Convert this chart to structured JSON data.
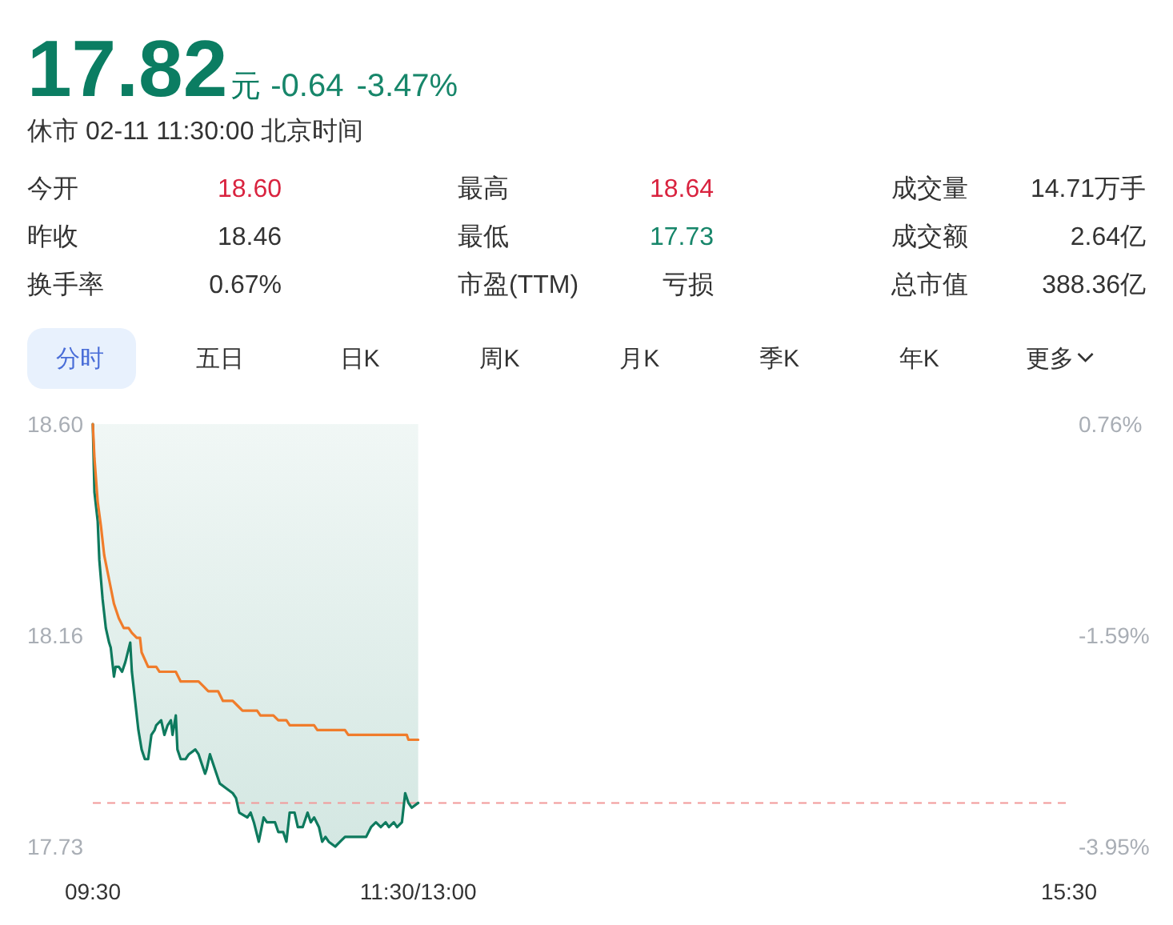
{
  "chart_data": [
    {
      "type": "other",
      "title": "17.82",
      "color": "#0b7d62",
      "subtitle": "休市 02-11 11:30:00 北京时间",
      "annotations": [
        "元",
        "-0.64",
        "-3.47%",
        "今开",
        "18.60",
        "最高",
        "18.64",
        "成交量",
        "14.71万手",
        "昨收",
        "18.46",
        "最低",
        "17.73",
        "成交额",
        "2.64亿",
        "换手率",
        "0.67%",
        "市盈(TTM)",
        "亏损",
        "总市值",
        "388.36亿",
        "分时",
        "五日",
        "日K",
        "周K",
        "月K",
        "季K",
        "年K",
        "更多"
      ],
      "colors": [
        "#0b7d62",
        "#17866a",
        "#17866a",
        "#333333",
        "#d9233f",
        "#333333",
        "#d9233f",
        "#333333",
        "#333333",
        "#333333",
        "#333333",
        "#333333",
        "#17866a",
        "#333333",
        "#333333",
        "#333333",
        "#333333",
        "#333333",
        "#333333",
        "#333333",
        "#333333",
        "#4a6ed8",
        "#333333",
        "#333333",
        "#333333",
        "#333333",
        "#333333",
        "#333333",
        "#333333"
      ]
    },
    {
      "type": "line",
      "xlim": [
        9.5,
        15.5
      ],
      "xticks": [
        {
          "value": 9.5,
          "label": "09:30"
        },
        {
          "value": 11.5,
          "label": "11:30/13:00"
        },
        {
          "value": 15.5,
          "label": "15:30"
        }
      ],
      "ylim": [
        17.73,
        18.6
      ],
      "yticks": [
        {
          "value": 18.6,
          "label": "18.60"
        },
        {
          "value": 18.165,
          "label": "18.16"
        },
        17.73
      ],
      "y2lim": [
        -3.95,
        0.76
      ],
      "y2ticks": [
        {
          "value": 0.76,
          "label": "0.76%"
        },
        {
          "value": -1.595,
          "label": "-1.59%"
        },
        {
          "value": -3.95,
          "label": "-3.95%"
        }
      ],
      "ref_lines": [
        {
          "axis": "y",
          "value": 17.82,
          "color": "#f29a9a",
          "line_style": "dashed"
        }
      ],
      "series": [
        {
          "type": "line",
          "color": "#0e7a5e",
          "x": [
            9.5,
            9.51,
            9.53,
            9.54,
            9.56,
            9.58,
            9.6,
            9.61,
            9.63,
            9.64,
            9.66,
            9.68,
            9.7,
            9.73,
            9.74,
            9.76,
            9.78,
            9.8,
            9.82,
            9.84,
            9.86,
            9.88,
            9.89,
            9.92,
            9.94,
            9.96,
            9.98,
            9.99,
            10.01,
            10.02,
            10.04,
            10.07,
            10.09,
            10.13,
            10.15,
            10.19,
            10.2,
            10.22,
            10.26,
            10.28,
            10.32,
            10.36,
            10.38,
            10.4,
            10.45,
            10.47,
            10.49,
            10.52,
            10.55,
            10.57,
            10.62,
            10.64,
            10.67,
            10.69,
            10.71,
            10.74,
            10.76,
            10.79,
            10.82,
            10.84,
            10.86,
            10.89,
            10.91,
            10.93,
            10.95,
            10.99,
            11.02,
            11.05,
            11.18,
            11.21,
            11.24,
            11.27,
            11.3,
            11.32,
            11.35,
            11.37,
            11.4,
            11.42,
            11.44,
            11.46,
            11.5
          ],
          "values": [
            18.6,
            18.46,
            18.4,
            18.32,
            18.24,
            18.18,
            18.15,
            18.14,
            18.08,
            18.1,
            18.1,
            18.09,
            18.11,
            18.15,
            18.09,
            18.03,
            17.97,
            17.93,
            17.91,
            17.91,
            17.96,
            17.97,
            17.98,
            17.99,
            17.96,
            17.98,
            17.99,
            17.96,
            18.0,
            17.93,
            17.91,
            17.91,
            17.92,
            17.93,
            17.92,
            17.88,
            17.89,
            17.92,
            17.88,
            17.86,
            17.85,
            17.84,
            17.83,
            17.8,
            17.79,
            17.8,
            17.78,
            17.74,
            17.79,
            17.78,
            17.78,
            17.76,
            17.76,
            17.74,
            17.8,
            17.8,
            17.77,
            17.77,
            17.8,
            17.78,
            17.79,
            17.77,
            17.74,
            17.75,
            17.74,
            17.73,
            17.74,
            17.75,
            17.75,
            17.77,
            17.78,
            17.77,
            17.78,
            17.77,
            17.78,
            17.77,
            17.78,
            17.84,
            17.82,
            17.81,
            17.82
          ],
          "lower": [
            18.6,
            18.46,
            18.4,
            18.32,
            18.24,
            18.18,
            18.15,
            18.14,
            18.08,
            18.1,
            18.1,
            18.09,
            18.11,
            18.15,
            18.09,
            18.03,
            17.97,
            17.93,
            17.91,
            17.91,
            17.96,
            17.97,
            17.98,
            17.99,
            17.96,
            17.98,
            17.99,
            17.96,
            18.0,
            17.93,
            17.91,
            17.91,
            17.92,
            17.93,
            17.92,
            17.88,
            17.89,
            17.92,
            17.88,
            17.86,
            17.85,
            17.84,
            17.83,
            17.8,
            17.79,
            17.8,
            17.78,
            17.74,
            17.79,
            17.78,
            17.78,
            17.76,
            17.76,
            17.74,
            17.8,
            17.8,
            17.77,
            17.77,
            17.8,
            17.78,
            17.79,
            17.77,
            17.74,
            17.75,
            17.74,
            17.73,
            17.74,
            17.75,
            17.75,
            17.77,
            17.78,
            17.77,
            17.78,
            17.77,
            17.78,
            17.77,
            17.78,
            17.84,
            17.82,
            17.81,
            17.82
          ],
          "upper": [
            18.6,
            18.6,
            18.6,
            18.6,
            18.6,
            18.6,
            18.6,
            18.6,
            18.6,
            18.6,
            18.6,
            18.6,
            18.6,
            18.6,
            18.6,
            18.6,
            18.6,
            18.6,
            18.6,
            18.6,
            18.6,
            18.6,
            18.6,
            18.6,
            18.6,
            18.6,
            18.6,
            18.6,
            18.6,
            18.6,
            18.6,
            18.6,
            18.6,
            18.6,
            18.6,
            18.6,
            18.6,
            18.6,
            18.6,
            18.6,
            18.6,
            18.6,
            18.6,
            18.6,
            18.6,
            18.6,
            18.6,
            18.6,
            18.6,
            18.6,
            18.6,
            18.6,
            18.6,
            18.6,
            18.6,
            18.6,
            18.6,
            18.6,
            18.6,
            18.6,
            18.6,
            18.6,
            18.6,
            18.6,
            18.6,
            18.6,
            18.6,
            18.6,
            18.6,
            18.6,
            18.6,
            18.6,
            18.6,
            18.6,
            18.6,
            18.6,
            18.6,
            18.6,
            18.6,
            18.6,
            18.6
          ]
        },
        {
          "type": "line",
          "color": "#f07c2b",
          "x": [
            9.5,
            9.51,
            9.53,
            9.55,
            9.57,
            9.6,
            9.63,
            9.66,
            9.69,
            9.72,
            9.74,
            9.77,
            9.79,
            9.8,
            9.84,
            9.89,
            9.91,
            10.01,
            10.04,
            10.15,
            10.18,
            10.21,
            10.27,
            10.3,
            10.36,
            10.39,
            10.42,
            10.51,
            10.53,
            10.61,
            10.64,
            10.69,
            10.71,
            10.86,
            10.88,
            11.05,
            11.07,
            11.43,
            11.44,
            11.5
          ],
          "values": [
            18.6,
            18.53,
            18.44,
            18.39,
            18.33,
            18.28,
            18.23,
            18.2,
            18.18,
            18.18,
            18.17,
            18.16,
            18.16,
            18.13,
            18.1,
            18.1,
            18.09,
            18.09,
            18.07,
            18.07,
            18.06,
            18.05,
            18.05,
            18.03,
            18.03,
            18.02,
            18.01,
            18.01,
            18.0,
            18.0,
            17.99,
            17.99,
            17.98,
            17.98,
            17.97,
            17.97,
            17.96,
            17.96,
            17.95,
            17.95
          ]
        }
      ]
    }
  ]
}
